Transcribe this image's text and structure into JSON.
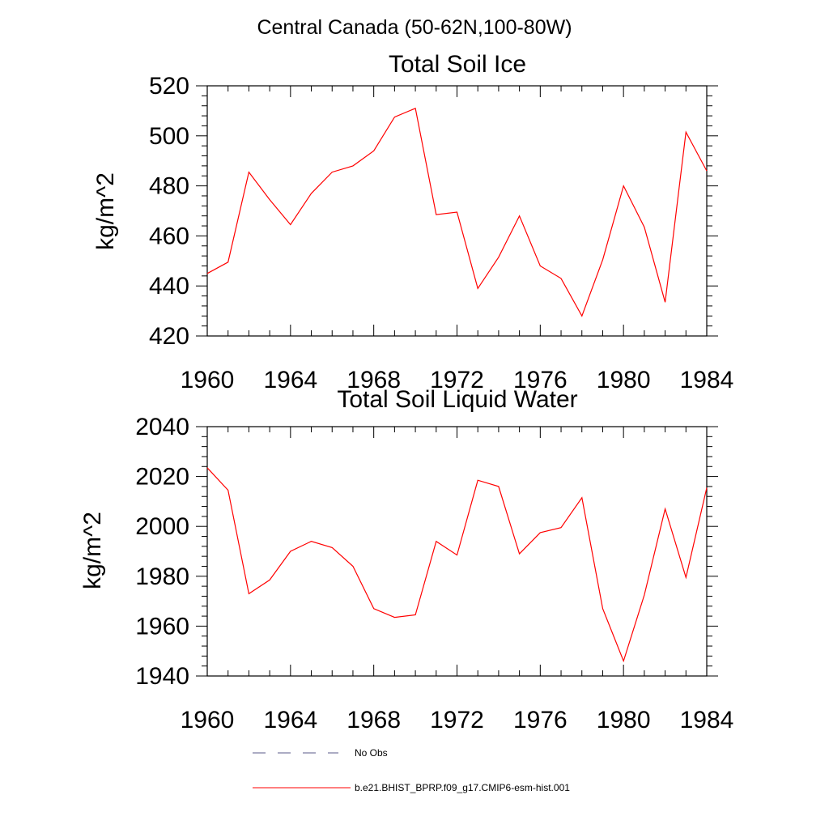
{
  "suptitle": "Central Canada (50-62N,100-80W)",
  "chart_data": [
    {
      "type": "line",
      "title": "Total Soil Ice",
      "xlabel": "",
      "ylabel": "kg/m^2",
      "xlim": [
        1960,
        1984
      ],
      "ylim": [
        420,
        520
      ],
      "xticks": [
        1960,
        1964,
        1968,
        1972,
        1976,
        1980,
        1984
      ],
      "yticks": [
        420,
        440,
        460,
        480,
        500,
        520
      ],
      "grid": false,
      "series": [
        {
          "name": "b.e21.BHIST_BPRP.f09_g17.CMIP6-esm-hist.001",
          "color": "#ff0000",
          "x": [
            1960,
            1961,
            1962,
            1963,
            1964,
            1965,
            1966,
            1967,
            1968,
            1969,
            1970,
            1971,
            1972,
            1973,
            1974,
            1975,
            1976,
            1977,
            1978,
            1979,
            1980,
            1981,
            1982,
            1983,
            1984
          ],
          "values": [
            445,
            449.5,
            485.5,
            474.5,
            464.5,
            477,
            485.5,
            488,
            494,
            507.5,
            511,
            468.5,
            469.5,
            439,
            451.5,
            468,
            448,
            443,
            428,
            450.5,
            480,
            463.5,
            433.5,
            501.5,
            486
          ]
        }
      ]
    },
    {
      "type": "line",
      "title": "Total Soil Liquid Water",
      "xlabel": "",
      "ylabel": "kg/m^2",
      "xlim": [
        1960,
        1984
      ],
      "ylim": [
        1940,
        2040
      ],
      "xticks": [
        1960,
        1964,
        1968,
        1972,
        1976,
        1980,
        1984
      ],
      "yticks": [
        1940,
        1960,
        1980,
        2000,
        2020,
        2040
      ],
      "grid": false,
      "series": [
        {
          "name": "b.e21.BHIST_BPRP.f09_g17.CMIP6-esm-hist.001",
          "color": "#ff0000",
          "x": [
            1960,
            1961,
            1962,
            1963,
            1964,
            1965,
            1966,
            1967,
            1968,
            1969,
            1970,
            1971,
            1972,
            1973,
            1974,
            1975,
            1976,
            1977,
            1978,
            1979,
            1980,
            1981,
            1982,
            1983,
            1984
          ],
          "values": [
            2023.5,
            2014.5,
            1973,
            1978.5,
            1990,
            1994,
            1991.5,
            1984,
            1967,
            1963.5,
            1964.5,
            1994,
            1988.5,
            2018.5,
            2016,
            1989,
            1997.5,
            1999.5,
            2011.5,
            1967,
            1946,
            1972.5,
            2007,
            1979.5,
            2015.5
          ]
        }
      ]
    }
  ],
  "legend": {
    "placement": "bottom",
    "entries": [
      {
        "label": "No Obs",
        "color": "#5a5a8a",
        "style": "dashed"
      },
      {
        "label": "b.e21.BHIST_BPRP.f09_g17.CMIP6-esm-hist.001",
        "color": "#ff0000",
        "style": "solid"
      }
    ]
  }
}
